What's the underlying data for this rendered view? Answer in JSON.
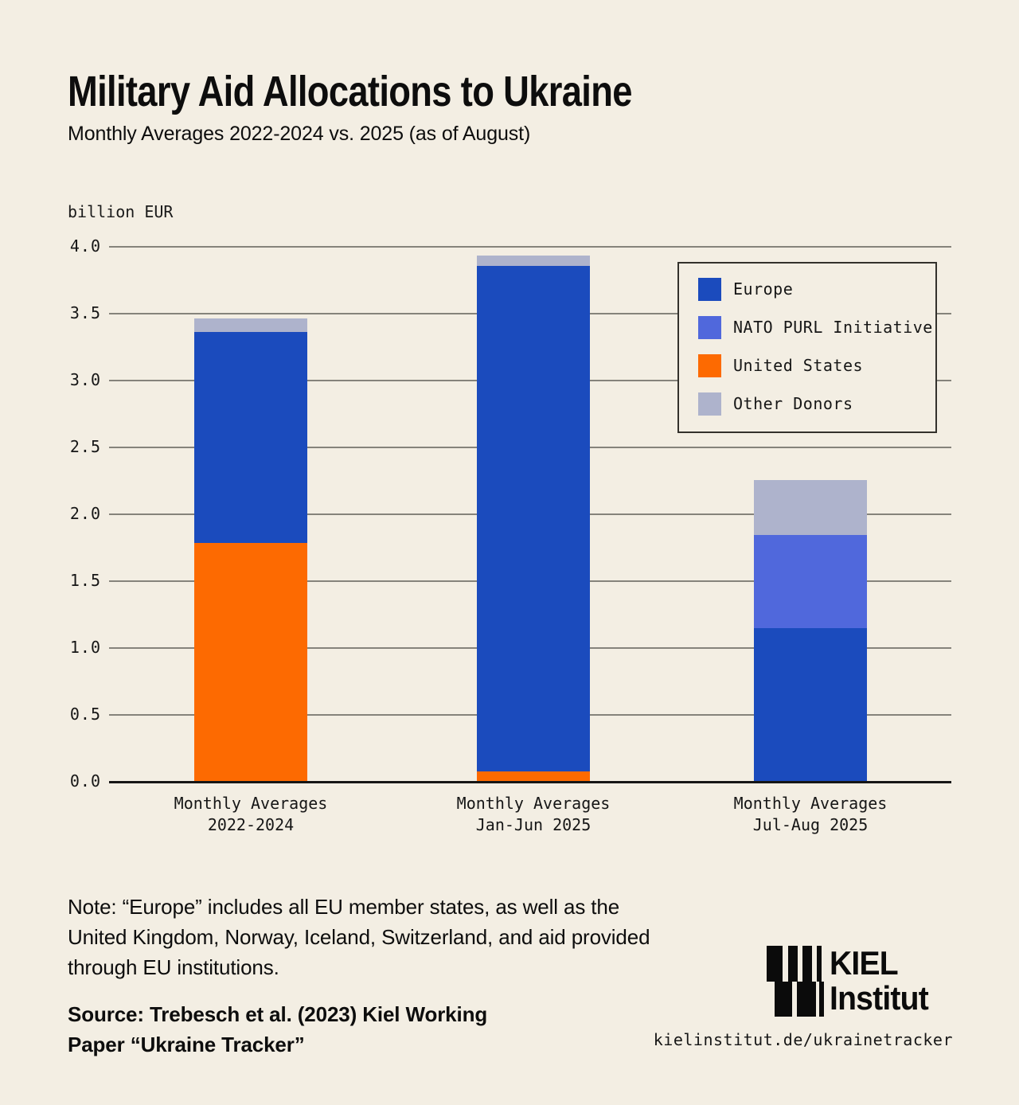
{
  "page": {
    "background": "#f3eee3",
    "text_color": "#121212",
    "gridline_color": "#85837b",
    "axis_color": "#161616"
  },
  "header": {
    "title": "Military Aid Allocations to Ukraine",
    "subtitle": "Monthly Averages 2022-2024 vs. 2025 (as of August)"
  },
  "chart_data": {
    "type": "bar",
    "stacked": true,
    "unit_label": "billion EUR",
    "ylim": [
      0.0,
      4.0
    ],
    "ytick_labels": [
      "4.0",
      "3.5",
      "3.0",
      "2.5",
      "2.0",
      "1.5",
      "1.0",
      "0.5",
      "0.0"
    ],
    "grid": true,
    "categories": [
      "Monthly Averages\n2022-2024",
      "Monthly Averages\nJan-Jun 2025",
      "Monthly Averages\nJul-Aug 2025"
    ],
    "series": [
      {
        "name": "United States",
        "color": "#fd6a01",
        "values": [
          1.78,
          0.07,
          0
        ]
      },
      {
        "name": "Europe",
        "color": "#1b4bbd",
        "values": [
          1.58,
          3.78,
          1.14
        ]
      },
      {
        "name": "NATO PURL Initiative",
        "color": "#5068dc",
        "values": [
          0,
          0,
          0.7
        ]
      },
      {
        "name": "Other Donors",
        "color": "#aeb3cc",
        "values": [
          0.1,
          0.08,
          0.41
        ]
      }
    ],
    "totals": [
      3.46,
      3.93,
      2.25
    ],
    "legend": {
      "position": "top-right",
      "entries": [
        {
          "label": "Europe",
          "color": "#1b4bbd"
        },
        {
          "label": "NATO PURL Initiative",
          "color": "#5068dc"
        },
        {
          "label": "United States",
          "color": "#fd6a01"
        },
        {
          "label": "Other Donors",
          "color": "#aeb3cc"
        }
      ]
    }
  },
  "footer": {
    "note": "Note: “Europe” includes all EU member states, as well as the\nUnited Kingdom, Norway, Iceland, Switzerland, and aid provided\nthrough EU institutions.",
    "source": "Source: Trebesch et al. (2023) Kiel Working\nPaper “Ukraine Tracker”",
    "logo": {
      "name_line1": "KIEL",
      "name_line2": "Institut",
      "url": "kielinstitut.de/ukrainetracker"
    }
  }
}
